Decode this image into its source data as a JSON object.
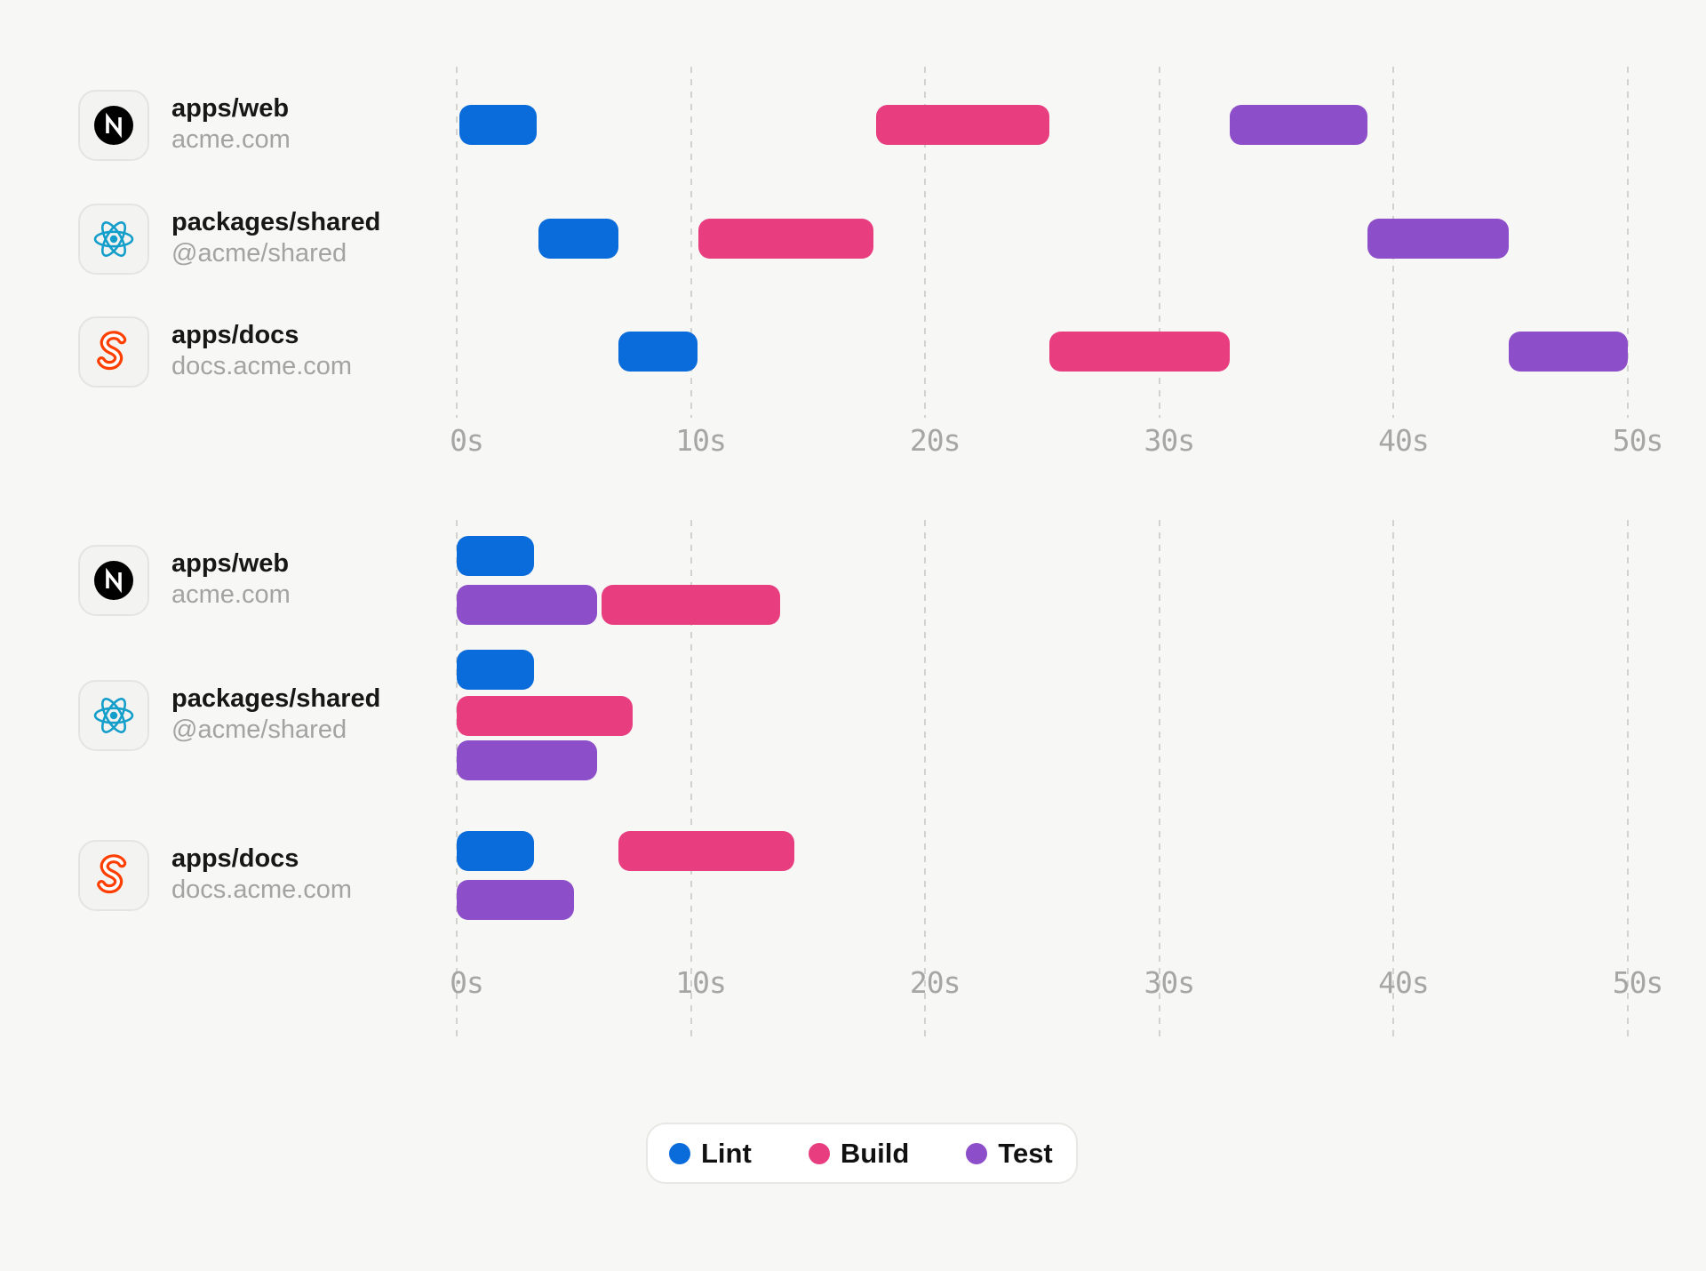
{
  "colors": {
    "lint": "#0a6bdb",
    "build": "#e83e80",
    "test": "#8d4ec9",
    "background": "#f7f7f5",
    "grid": "#d2d2cf",
    "axis_text": "#a6a6a3",
    "title_text": "#171717",
    "subtitle_text": "#a3a3a0",
    "nextjs": "#000000",
    "react": "#149eca",
    "svelte": "#ff3e00"
  },
  "packages": [
    {
      "id": "web",
      "title": "apps/web",
      "subtitle": "acme.com",
      "icon": "nextjs-icon"
    },
    {
      "id": "shared",
      "title": "packages/shared",
      "subtitle": "@acme/shared",
      "icon": "react-icon"
    },
    {
      "id": "docs",
      "title": "apps/docs",
      "subtitle": "docs.acme.com",
      "icon": "svelte-icon"
    }
  ],
  "chart_data": [
    {
      "id": "sequential",
      "type": "gantt",
      "unit": "seconds",
      "x_axis": {
        "min": 0,
        "max": 50,
        "ticks": [
          "0s",
          "10s",
          "20s",
          "30s",
          "40s",
          "50s"
        ],
        "gridlines": "dashed"
      },
      "rows": [
        {
          "package": "apps/web",
          "lines": [
            [
              {
                "task": "Lint",
                "start": 0.1,
                "end": 3.4
              },
              {
                "task": "Build",
                "start": 17.9,
                "end": 25.3
              },
              {
                "task": "Test",
                "start": 33.0,
                "end": 38.9
              }
            ]
          ]
        },
        {
          "package": "packages/shared",
          "lines": [
            [
              {
                "task": "Lint",
                "start": 3.5,
                "end": 6.9
              },
              {
                "task": "Build",
                "start": 10.3,
                "end": 17.8
              },
              {
                "task": "Test",
                "start": 38.9,
                "end": 44.9
              }
            ]
          ]
        },
        {
          "package": "apps/docs",
          "lines": [
            [
              {
                "task": "Lint",
                "start": 6.9,
                "end": 10.3
              },
              {
                "task": "Build",
                "start": 25.3,
                "end": 33.0
              },
              {
                "task": "Test",
                "start": 44.9,
                "end": 50.0
              }
            ]
          ]
        }
      ]
    },
    {
      "id": "parallel",
      "type": "gantt",
      "unit": "seconds",
      "x_axis": {
        "min": 0,
        "max": 50,
        "ticks": [
          "0s",
          "10s",
          "20s",
          "30s",
          "40s",
          "50s"
        ],
        "gridlines": "dashed"
      },
      "rows": [
        {
          "package": "apps/web",
          "lines": [
            [
              {
                "task": "Lint",
                "start": 0,
                "end": 3.3
              }
            ],
            [
              {
                "task": "Test",
                "start": 0,
                "end": 6.0
              },
              {
                "task": "Build",
                "start": 6.2,
                "end": 13.8
              }
            ]
          ]
        },
        {
          "package": "packages/shared",
          "lines": [
            [
              {
                "task": "Lint",
                "start": 0,
                "end": 3.3
              }
            ],
            [
              {
                "task": "Build",
                "start": 0,
                "end": 7.5
              }
            ],
            [
              {
                "task": "Test",
                "start": 0,
                "end": 6.0
              }
            ]
          ]
        },
        {
          "package": "apps/docs",
          "lines": [
            [
              {
                "task": "Lint",
                "start": 0,
                "end": 3.3
              },
              {
                "task": "Build",
                "start": 6.9,
                "end": 14.4
              }
            ],
            [
              {
                "task": "Test",
                "start": 0,
                "end": 5.0
              }
            ]
          ]
        }
      ]
    }
  ],
  "legend": {
    "items": [
      {
        "label": "Lint",
        "color_key": "lint"
      },
      {
        "label": "Build",
        "color_key": "build"
      },
      {
        "label": "Test",
        "color_key": "test"
      }
    ]
  }
}
